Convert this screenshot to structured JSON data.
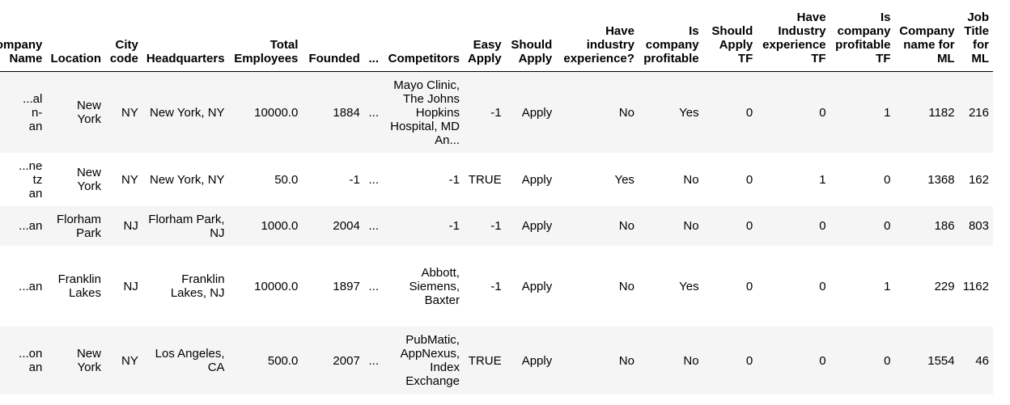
{
  "table": {
    "columns": [
      "Company Name",
      "Location",
      "City code",
      "Headquarters",
      "Total Employees",
      "Founded",
      "...",
      "Competitors",
      "Easy Apply",
      "Should Apply",
      "Have industry experience?",
      "Is company profitable",
      "Should Apply TF",
      "Have Industry experience TF",
      "Is company profitable TF",
      "Company name for ML",
      "Job Title for ML"
    ],
    "rows": [
      [
        "...al\nn-\nan",
        "New York",
        "NY",
        "New York, NY",
        "10000.0",
        "1884",
        "...",
        "Mayo Clinic, The Johns Hopkins Hospital, MD An...",
        "-1",
        "Apply",
        "No",
        "Yes",
        "0",
        "0",
        "1",
        "1182",
        "216"
      ],
      [
        "...ne\ntz\nan",
        "New York",
        "NY",
        "New York, NY",
        "50.0",
        "-1",
        "...",
        "-1",
        "TRUE",
        "Apply",
        "Yes",
        "No",
        "0",
        "1",
        "0",
        "1368",
        "162"
      ],
      [
        "...an",
        "Florham Park",
        "NJ",
        "Florham Park, NJ",
        "1000.0",
        "2004",
        "...",
        "-1",
        "-1",
        "Apply",
        "No",
        "No",
        "0",
        "0",
        "0",
        "186",
        "803"
      ],
      [
        "...an",
        "Franklin Lakes",
        "NJ",
        "Franklin Lakes, NJ",
        "10000.0",
        "1897",
        "...",
        "Abbott, Siemens, Baxter",
        "-1",
        "Apply",
        "No",
        "Yes",
        "0",
        "0",
        "1",
        "229",
        "1162"
      ],
      [
        "...on\nan",
        "New York",
        "NY",
        "Los Angeles, CA",
        "500.0",
        "2007",
        "...",
        "PubMatic, AppNexus, Index Exchange",
        "TRUE",
        "Apply",
        "No",
        "No",
        "0",
        "0",
        "0",
        "1554",
        "46"
      ]
    ]
  }
}
